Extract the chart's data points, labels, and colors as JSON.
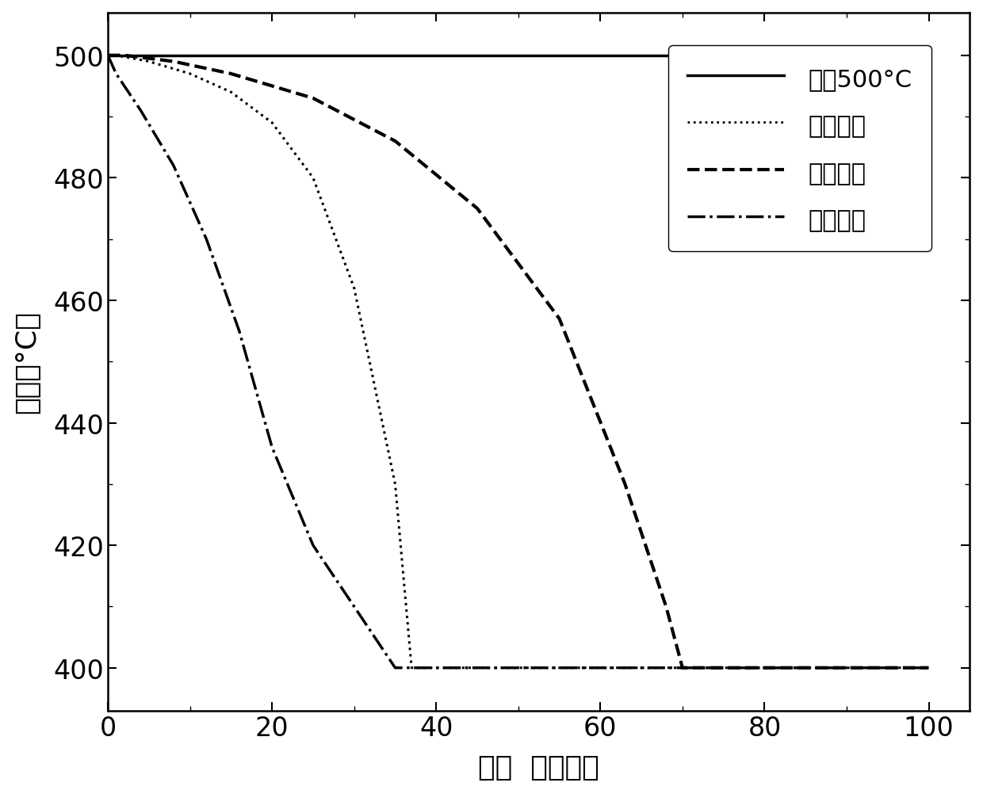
{
  "xlabel": "时间  （小时）",
  "ylabel": "温度（°C）",
  "xlim": [
    0,
    105
  ],
  "ylim": [
    393,
    507
  ],
  "xticks": [
    0,
    20,
    40,
    60,
    80,
    100
  ],
  "yticks": [
    400,
    420,
    440,
    460,
    480,
    500
  ],
  "background_color": "#ffffff",
  "line_color": "#000000",
  "legend_labels": [
    "恒温500°C",
    "自然降温",
    "缓慢降温",
    "快速降温"
  ],
  "legend_styles": [
    "solid",
    "dotted",
    "dashed",
    "dashdot"
  ],
  "legend_linewidths": [
    2.5,
    2.0,
    3.0,
    2.5
  ],
  "series": {
    "constant": {
      "x": [
        0,
        100
      ],
      "y": [
        500,
        500
      ],
      "linestyle": "solid",
      "linewidth": 2.5
    },
    "natural": {
      "x": [
        0,
        1,
        5,
        10,
        15,
        20,
        25,
        30,
        35,
        37,
        100
      ],
      "y": [
        500,
        500,
        499,
        497,
        494,
        489,
        480,
        462,
        430,
        400,
        400
      ],
      "linestyle": "dotted",
      "linewidth": 2.2
    },
    "slow": {
      "x": [
        0,
        2,
        8,
        15,
        25,
        35,
        45,
        55,
        63,
        68,
        70,
        100
      ],
      "y": [
        500,
        500,
        499,
        497,
        493,
        486,
        475,
        457,
        430,
        410,
        400,
        400
      ],
      "linestyle": "dashed",
      "linewidth": 3.0
    },
    "fast": {
      "x": [
        0,
        1,
        4,
        8,
        12,
        16,
        20,
        25,
        30,
        35,
        100
      ],
      "y": [
        500,
        497,
        491,
        482,
        470,
        455,
        436,
        420,
        410,
        400,
        400
      ],
      "linestyle": "dashdot",
      "linewidth": 2.5
    }
  }
}
